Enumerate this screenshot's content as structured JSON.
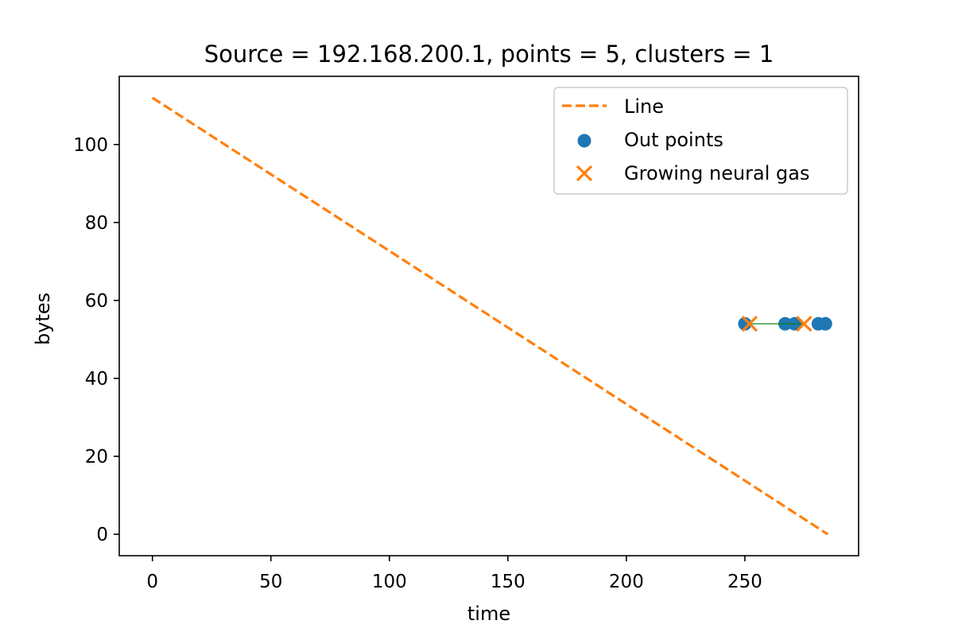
{
  "chart_data": {
    "type": "scatter",
    "title": "Source = 192.168.200.1, points = 5, clusters = 1",
    "xlabel": "time",
    "ylabel": "bytes",
    "xlim": [
      -14,
      298
    ],
    "ylim": [
      -5.5,
      117.5
    ],
    "xticks": [
      0,
      50,
      100,
      150,
      200,
      250
    ],
    "yticks": [
      0,
      20,
      40,
      60,
      80,
      100
    ],
    "grid": false,
    "legend_position": "top-right",
    "series": [
      {
        "name": "Line",
        "kind": "line",
        "style": "dashed",
        "color": "#ff7f0e",
        "x": [
          0,
          285
        ],
        "y": [
          112,
          0
        ]
      },
      {
        "name": "Out points",
        "kind": "scatter",
        "marker": "circle",
        "color": "#1f77b4",
        "x": [
          250,
          267,
          271,
          281,
          284
        ],
        "y": [
          54,
          54,
          54,
          54,
          54
        ]
      },
      {
        "name": "Growing neural gas",
        "kind": "scatter",
        "marker": "x",
        "color": "#ff7f0e",
        "x": [
          252,
          275
        ],
        "y": [
          54,
          54
        ]
      }
    ],
    "edges": {
      "color": "#008000",
      "segments": [
        {
          "x": [
            252,
            275
          ],
          "y": [
            54,
            54
          ]
        }
      ]
    }
  }
}
